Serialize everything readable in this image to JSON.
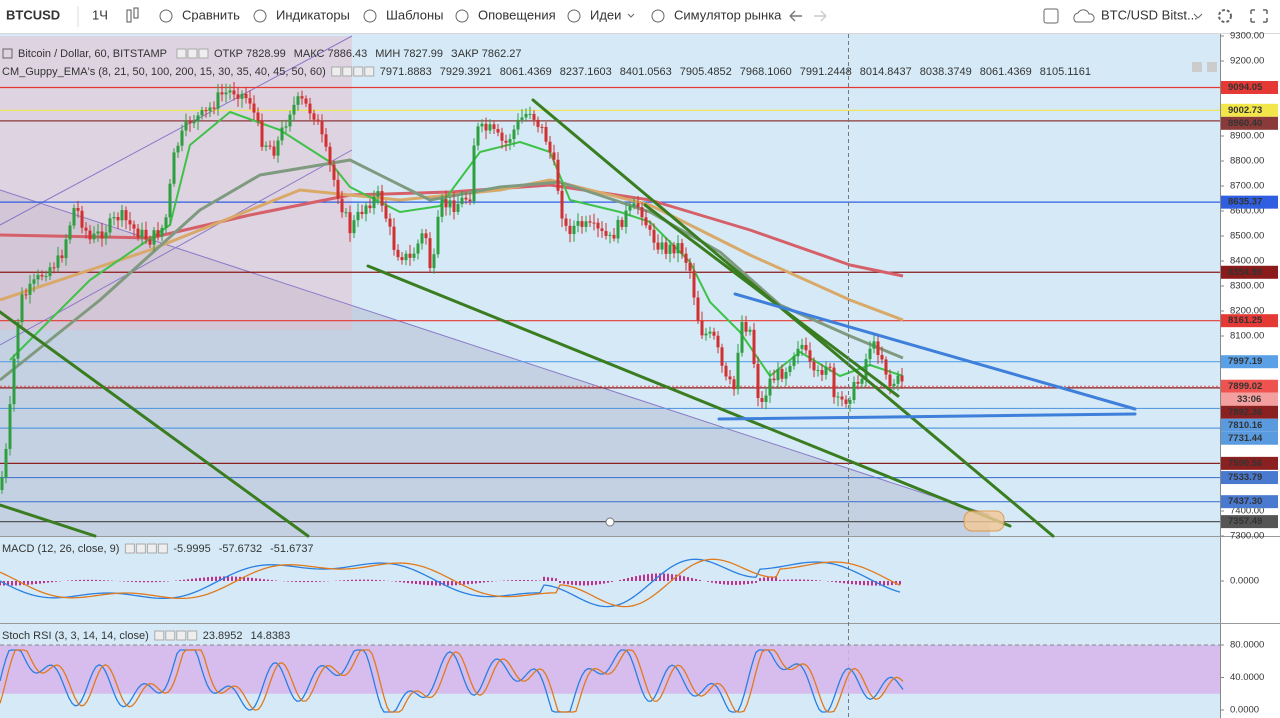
{
  "toolbar": {
    "symbol": "BTCUSD",
    "interval": "1Ч",
    "buttons": [
      "Сравнить",
      "Индикаторы",
      "Шаблоны",
      "Оповещения",
      "Идеи",
      "Симулятор рынка"
    ],
    "layout_name": "BTC/USD Bitst..."
  },
  "main_pane": {
    "title": "Bitcoin / Dollar, 60, BITSTAMP",
    "ohlc": [
      {
        "label": "ОТКР",
        "value": 7828.99
      },
      {
        "label": "МАКС",
        "value": 7886.43
      },
      {
        "label": "МИН",
        "value": 7827.99
      },
      {
        "label": "ЗАКР",
        "value": 7862.27
      }
    ],
    "indicator": {
      "title": "CM_Guppy_EMA's (8, 21, 50, 100, 200, 15, 30, 35, 40, 45, 50, 60)",
      "values": [
        {
          "label": "7971.8883",
          "color": "#e6d21e"
        },
        {
          "label": "7929.3921",
          "color": "#2fae2f"
        },
        {
          "label": "8061.4369",
          "color": "#3a8a3a"
        },
        {
          "label": "8237.1603",
          "color": "#e08a1e"
        },
        {
          "label": "8401.0563",
          "color": "#e0382e"
        },
        {
          "label": "7905.4852",
          "color": "#6a6a6a"
        },
        {
          "label": "7968.1060",
          "color": "#e0382e"
        },
        {
          "label": "7991.2448",
          "color": "#e0382e"
        },
        {
          "label": "8014.8437",
          "color": "#e0382e"
        },
        {
          "label": "8038.3749",
          "color": "#e0382e"
        },
        {
          "label": "8061.4369",
          "color": "#e0382e"
        },
        {
          "label": "8105.1161",
          "color": "#e0382e"
        }
      ]
    },
    "yticks": [
      {
        "value": 9300,
        "label": "9300.00"
      },
      {
        "value": 9200,
        "label": "9200.00"
      },
      {
        "value": 8900,
        "label": "8900.00"
      },
      {
        "value": 8800,
        "label": "8800.00"
      },
      {
        "value": 8700,
        "label": "8700.00"
      },
      {
        "value": 8600,
        "label": "8600.00"
      },
      {
        "value": 8500,
        "label": "8500.00"
      },
      {
        "value": 8400,
        "label": "8400.00"
      },
      {
        "value": 8300,
        "label": "8300.00"
      },
      {
        "value": 8200,
        "label": "8200.00"
      },
      {
        "value": 8100,
        "label": "8100.00"
      },
      {
        "value": 7400,
        "label": "7400.00"
      },
      {
        "value": 7300,
        "label": "7300.00"
      }
    ],
    "levels": [
      {
        "value": 9094.05,
        "label": "9094.05",
        "color": "#e53935"
      },
      {
        "value": 9002.73,
        "label": "9002.73",
        "color": "#f2e64a"
      },
      {
        "value": 8960.4,
        "label": "8960.40",
        "color": "#8b3a3a"
      },
      {
        "value": 8635.37,
        "label": "8635.37",
        "color": "#2f5fe0"
      },
      {
        "value": 8354.9,
        "label": "8354.90",
        "color": "#8b1a1a"
      },
      {
        "value": 8161.25,
        "label": "8161.25",
        "color": "#e53935"
      },
      {
        "value": 7997.19,
        "label": "7997.19",
        "color": "#5aa0e6"
      },
      {
        "value": 7899.02,
        "label": "7899.02",
        "color": "#ef5350",
        "countdown": "33:06"
      },
      {
        "value": 7892.36,
        "label": "7892.36",
        "color": "#8b2020"
      },
      {
        "value": 7810.16,
        "label": "7810.16",
        "color": "#5a9be0"
      },
      {
        "value": 7731.44,
        "label": "7731.44",
        "color": "#5a9be0"
      },
      {
        "value": 7590.56,
        "label": "7590.56",
        "color": "#8b2020"
      },
      {
        "value": 7533.79,
        "label": "7533.79",
        "color": "#4a7ad0"
      },
      {
        "value": 7437.3,
        "label": "7437.30",
        "color": "#4a7ad0"
      },
      {
        "value": 7357.49,
        "label": "7357.49",
        "color": "#555555"
      }
    ]
  },
  "macd_pane": {
    "title": "MACD (12, 26, close, 9)",
    "values": [
      {
        "label": "-5.9995",
        "color": "#e0338a"
      },
      {
        "label": "-57.6732",
        "color": "#2a7fe0"
      },
      {
        "label": "-51.6737",
        "color": "#e07a1e"
      }
    ],
    "yticks": [
      {
        "value": 0,
        "label": "0.0000"
      }
    ]
  },
  "stoch_pane": {
    "title": "Stoch RSI (3, 3, 14, 14, close)",
    "values": [
      {
        "label": "23.8952",
        "color": "#2a7fe0"
      },
      {
        "label": "14.8383",
        "color": "#e07a1e"
      }
    ],
    "yticks": [
      {
        "value": 80,
        "label": "80.0000"
      },
      {
        "value": 40,
        "label": "40.0000"
      },
      {
        "value": 0,
        "label": "0.0000"
      }
    ]
  }
}
